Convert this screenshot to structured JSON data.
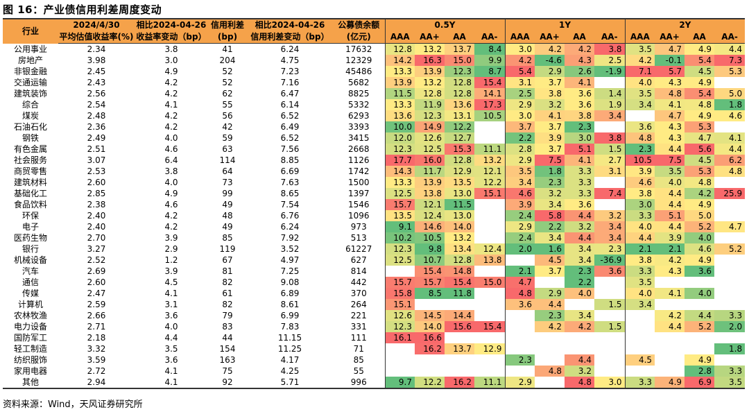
{
  "title": "图 16：产业债信用利差周度变动",
  "source": "资料来源：Wind，天风证券研究所",
  "header": {
    "industry": "行业",
    "col1_top": "2024/4/30",
    "col1_bot": "平均估值收益率(%)",
    "col2_top": "相比2024-04-26",
    "col2_bot": "收益率变动（bp）",
    "col3_top": "信用利差",
    "col3_bot": "(bp)",
    "col4_top": "相比2024-04-26",
    "col4_bot": "信用利差变动（bp）",
    "col5_top": "公募债余额",
    "col5_bot": "(亿元)",
    "groups": [
      "0.5Y",
      "1Y",
      "2Y"
    ],
    "ratings": [
      "AAA",
      "AA+",
      "AA",
      "AA-"
    ]
  },
  "colors": {
    "header_bg": "#f5a24a",
    "low": "#63be7b",
    "mid": "#ffeb84",
    "high": "#f8696b"
  },
  "rows": [
    {
      "name": "公用事业",
      "yield": "2.34",
      "ychg": "3.8",
      "spread": "41",
      "schg": "6.24",
      "bal": "17632",
      "h": [
        [
          "12.8",
          "13.2",
          "13.7",
          "8.4"
        ],
        [
          "3.0",
          "4.2",
          "4.2",
          "3.8"
        ],
        [
          "3.5",
          "4.7",
          "4.9",
          "4.4"
        ]
      ]
    },
    {
      "name": "房地产",
      "yield": "3.98",
      "ychg": "3.0",
      "spread": "204",
      "schg": "4.75",
      "bal": "12329",
      "h": [
        [
          "14.2",
          "16.3",
          "15.0",
          "9.9"
        ],
        [
          "4.2",
          "-4.6",
          "4.3",
          "2.5"
        ],
        [
          "4.2",
          "-0.1",
          "5.4",
          "7.3"
        ]
      ]
    },
    {
      "name": "非银金融",
      "yield": "2.45",
      "ychg": "4.9",
      "spread": "52",
      "schg": "7.23",
      "bal": "45486",
      "h": [
        [
          "13.3",
          "13.9",
          "12.3",
          "8.7"
        ],
        [
          "5.4",
          "2.9",
          "2.6",
          "-1.9"
        ],
        [
          "7.1",
          "5.7",
          "4.5",
          "5.3"
        ]
      ]
    },
    {
      "name": "交通运输",
      "yield": "2.43",
      "ychg": "4.2",
      "spread": "52",
      "schg": "7.16",
      "bal": "5682",
      "h": [
        [
          "13.9",
          "13.2",
          "12.8",
          "15.4"
        ],
        [
          "3.1",
          "3.7",
          "4.1",
          ""
        ],
        [
          "4.0",
          "4.3",
          "4.9",
          ""
        ]
      ]
    },
    {
      "name": "建筑装饰",
      "yield": "2.56",
      "ychg": "4.2",
      "spread": "62",
      "schg": "6.47",
      "bal": "8825",
      "h": [
        [
          "11.5",
          "12.8",
          "12.8",
          "14.1"
        ],
        [
          "2.5",
          "3.8",
          "3.6",
          "1.4"
        ],
        [
          "3.5",
          "4.8",
          "5.4",
          "5.0"
        ]
      ]
    },
    {
      "name": "综合",
      "yield": "2.54",
      "ychg": "4.1",
      "spread": "55",
      "schg": "6.14",
      "bal": "5332",
      "h": [
        [
          "13.3",
          "11.9",
          "13.6",
          "17.3"
        ],
        [
          "2.9",
          "3.2",
          "3.6",
          "1.9"
        ],
        [
          "3.4",
          "4.1",
          "4.8",
          "1.8"
        ]
      ]
    },
    {
      "name": "煤炭",
      "yield": "2.48",
      "ychg": "4.2",
      "spread": "56",
      "schg": "6.52",
      "bal": "6293",
      "h": [
        [
          "13.6",
          "12.3",
          "13.1",
          "10.5"
        ],
        [
          "3.0",
          "4.1",
          "3.8",
          "3.4"
        ],
        [
          "",
          "4.7",
          "4.9",
          "4.6"
        ]
      ]
    },
    {
      "name": "石油石化",
      "yield": "2.36",
      "ychg": "4.2",
      "spread": "42",
      "schg": "6.49",
      "bal": "3393",
      "h": [
        [
          "10.0",
          "14.9",
          "12.2",
          ""
        ],
        [
          "3.7",
          "3.7",
          "2.3",
          ""
        ],
        [
          "3.6",
          "4.3",
          "5.3",
          ""
        ]
      ]
    },
    {
      "name": "钢铁",
      "yield": "2.49",
      "ychg": "4.0",
      "spread": "59",
      "schg": "6.52",
      "bal": "3415",
      "h": [
        [
          "12.0",
          "12.6",
          "12.7",
          ""
        ],
        [
          "2.2",
          "3.9",
          "3.0",
          "3.8"
        ],
        [
          "4.8",
          "4.3",
          "4.7",
          "4.1"
        ]
      ]
    },
    {
      "name": "有色金属",
      "yield": "2.51",
      "ychg": "4.6",
      "spread": "63",
      "schg": "7.56",
      "bal": "2668",
      "h": [
        [
          "12.3",
          "12.5",
          "15.3",
          "11.1"
        ],
        [
          "2.8",
          "3.7",
          "5.1",
          "1.5"
        ],
        [
          "2.3",
          "4.4",
          "5.6",
          "4.4"
        ]
      ]
    },
    {
      "name": "社会服务",
      "yield": "3.07",
      "ychg": "6.4",
      "spread": "114",
      "schg": "8.85",
      "bal": "1126",
      "h": [
        [
          "17.7",
          "16.0",
          "12.8",
          "13.2"
        ],
        [
          "2.9",
          "7.5",
          "4.1",
          "2.7"
        ],
        [
          "10.5",
          "7.5",
          "4.5",
          "6.2"
        ]
      ]
    },
    {
      "name": "商贸零售",
      "yield": "2.53",
      "ychg": "3.8",
      "spread": "64",
      "schg": "6.69",
      "bal": "1742",
      "h": [
        [
          "14.3",
          "11.7",
          "12.9",
          "12.1"
        ],
        [
          "3.5",
          "1.8",
          "3.3",
          "3.1"
        ],
        [
          "3.9",
          "3.5",
          "5.3",
          "4.8"
        ]
      ]
    },
    {
      "name": "建筑材料",
      "yield": "2.60",
      "ychg": "4.0",
      "spread": "73",
      "schg": "7.63",
      "bal": "1500",
      "h": [
        [
          "13.3",
          "13.9",
          "13.5",
          "12.2"
        ],
        [
          "3.4",
          "2.3",
          "3.3",
          ""
        ],
        [
          "4.6",
          "4.0",
          "4.8",
          ""
        ]
      ]
    },
    {
      "name": "基础化工",
      "yield": "2.85",
      "ychg": "4.9",
      "spread": "99",
      "schg": "8.65",
      "bal": "1397",
      "h": [
        [
          "12.5",
          "13.8",
          "13.0",
          "15.1"
        ],
        [
          "4.6",
          "3.2",
          "3.3",
          "7.4"
        ],
        [
          "3.8",
          "4.4",
          "4.2",
          "25.9"
        ]
      ]
    },
    {
      "name": "食品饮料",
      "yield": "2.38",
      "ychg": "4.6",
      "spread": "49",
      "schg": "7.54",
      "bal": "1546",
      "h": [
        [
          "15.7",
          "12.1",
          "11.5",
          ""
        ],
        [
          "3.9",
          "3.4",
          "3.6",
          ""
        ],
        [
          "3.0",
          "4.4",
          "4.9",
          ""
        ]
      ]
    },
    {
      "name": "环保",
      "yield": "2.40",
      "ychg": "4.2",
      "spread": "48",
      "schg": "6.76",
      "bal": "1096",
      "h": [
        [
          "13.5",
          "12.4",
          "13.0",
          ""
        ],
        [
          "2.4",
          "5.8",
          "4.4",
          "3.2"
        ],
        [
          "3.3",
          "5.1",
          "5.0",
          ""
        ]
      ]
    },
    {
      "name": "电子",
      "yield": "2.40",
      "ychg": "4.2",
      "spread": "49",
      "schg": "6.24",
      "bal": "973",
      "h": [
        [
          "9.1",
          "14.6",
          "14.0",
          ""
        ],
        [
          "2.9",
          "2.2",
          "3.2",
          "3.4"
        ],
        [
          "4.0",
          "4.4",
          "5.2",
          "4.7"
        ]
      ]
    },
    {
      "name": "医药生物",
      "yield": "2.70",
      "ychg": "3.9",
      "spread": "85",
      "schg": "7.92",
      "bal": "513",
      "h": [
        [
          "10.2",
          "10.5",
          "13.2",
          ""
        ],
        [
          "2.4",
          "3.4",
          "4.4",
          "3.4"
        ],
        [
          "4.4",
          "3.9",
          "4.0",
          ""
        ]
      ]
    },
    {
      "name": "银行",
      "yield": "3.27",
      "ychg": "2.9",
      "spread": "119",
      "schg": "3.52",
      "bal": "61227",
      "h": [
        [
          "12.3",
          "9.8",
          "13.4",
          "12.4"
        ],
        [
          "2.0",
          "1.6",
          "3.4",
          "2.3"
        ],
        [
          "2.1",
          "2.1",
          "4.6",
          "5.2"
        ]
      ]
    },
    {
      "name": "机械设备",
      "yield": "2.52",
      "ychg": "1.2",
      "spread": "67",
      "schg": "4.97",
      "bal": "627",
      "h": [
        [
          "12.5",
          "10.7",
          "12.8",
          "13.8"
        ],
        [
          "",
          "4.5",
          "3.4",
          "-36.9"
        ],
        [
          "3.8",
          "4.2",
          "4.9",
          ""
        ]
      ]
    },
    {
      "name": "汽车",
      "yield": "2.69",
      "ychg": "3.9",
      "spread": "81",
      "schg": "7.25",
      "bal": "814",
      "h": [
        [
          "",
          "15.4",
          "14.8",
          ""
        ],
        [
          "2.1",
          "3.7",
          "2.3",
          "3.6"
        ],
        [
          "3.3",
          "4.3",
          "3.6",
          ""
        ]
      ]
    },
    {
      "name": "通信",
      "yield": "2.60",
      "ychg": "4.5",
      "spread": "82",
      "schg": "9.08",
      "bal": "442",
      "h": [
        [
          "15.7",
          "15.7",
          "15.4",
          "15.0"
        ],
        [
          "4.7",
          "",
          "2.2",
          ""
        ],
        [
          "3.5",
          "",
          "",
          ""
        ]
      ]
    },
    {
      "name": "传媒",
      "yield": "2.47",
      "ychg": "4.1",
      "spread": "61",
      "schg": "6.89",
      "bal": "370",
      "h": [
        [
          "15.8",
          "8.5",
          "11.8",
          ""
        ],
        [
          "4.8",
          "2.9",
          "4.0",
          ""
        ],
        [
          "4.0",
          "4.1",
          "4.0",
          ""
        ]
      ]
    },
    {
      "name": "计算机",
      "yield": "2.59",
      "ychg": "3.1",
      "spread": "82",
      "schg": "8.61",
      "bal": "264",
      "h": [
        [
          "15.1",
          "",
          "",
          ""
        ],
        [
          "3.6",
          "4.4",
          "",
          "1.5"
        ],
        [
          "3.4",
          "",
          "",
          ""
        ]
      ]
    },
    {
      "name": "农林牧渔",
      "yield": "2.66",
      "ychg": "3.6",
      "spread": "79",
      "schg": "6.99",
      "bal": "221",
      "h": [
        [
          "12.6",
          "14.5",
          "14.4",
          ""
        ],
        [
          "",
          "2.3",
          "3.4",
          ""
        ],
        [
          "",
          "4.2",
          "4.4",
          "3.3"
        ]
      ]
    },
    {
      "name": "电力设备",
      "yield": "2.71",
      "ychg": "4.0",
      "spread": "83",
      "schg": "7.83",
      "bal": "331",
      "h": [
        [
          "12.3",
          "14.0",
          "15.6",
          "15.4"
        ],
        [
          "",
          "4.2",
          "4.2",
          "1.5"
        ],
        [
          "",
          "4.4",
          "5.2",
          "2.0"
        ]
      ]
    },
    {
      "name": "国防军工",
      "yield": "2.18",
      "ychg": "4.4",
      "spread": "44",
      "schg": "11.15",
      "bal": "111",
      "h": [
        [
          "16.1",
          "16.6",
          "",
          ""
        ],
        [
          "",
          "",
          "",
          ""
        ],
        [
          "",
          "",
          "",
          ""
        ]
      ]
    },
    {
      "name": "轻工制造",
      "yield": "3.32",
      "ychg": "3.5",
      "spread": "154",
      "schg": "11.25",
      "bal": "71",
      "h": [
        [
          "",
          "16.2",
          "13.7",
          "12.9"
        ],
        [
          "",
          "",
          "",
          ""
        ],
        [
          "",
          "",
          "",
          "1.8"
        ]
      ]
    },
    {
      "name": "纺织服饰",
      "yield": "3.59",
      "ychg": "3.6",
      "spread": "163",
      "schg": "4.17",
      "bal": "85",
      "h": [
        [
          "",
          "",
          "",
          ""
        ],
        [
          "2.3",
          "",
          "4.4",
          ""
        ],
        [
          "4.5",
          "",
          "4.9",
          ""
        ]
      ]
    },
    {
      "name": "家用电器",
      "yield": "2.72",
      "ychg": "4.1",
      "spread": "75",
      "schg": "4.25",
      "bal": "55",
      "h": [
        [
          "",
          "",
          "",
          ""
        ],
        [
          "",
          "4.8",
          "3.2",
          ""
        ],
        [
          "",
          "",
          "2.8",
          "3.3"
        ]
      ]
    },
    {
      "name": "其他",
      "yield": "2.94",
      "ychg": "4.1",
      "spread": "92",
      "schg": "5.71",
      "bal": "996",
      "h": [
        [
          "9.7",
          "12.2",
          "16.2",
          "11.1"
        ],
        [
          "2.9",
          "",
          "4.8",
          "3.0"
        ],
        [
          "3.3",
          "4.9",
          "6.9",
          "3.5"
        ]
      ]
    }
  ]
}
